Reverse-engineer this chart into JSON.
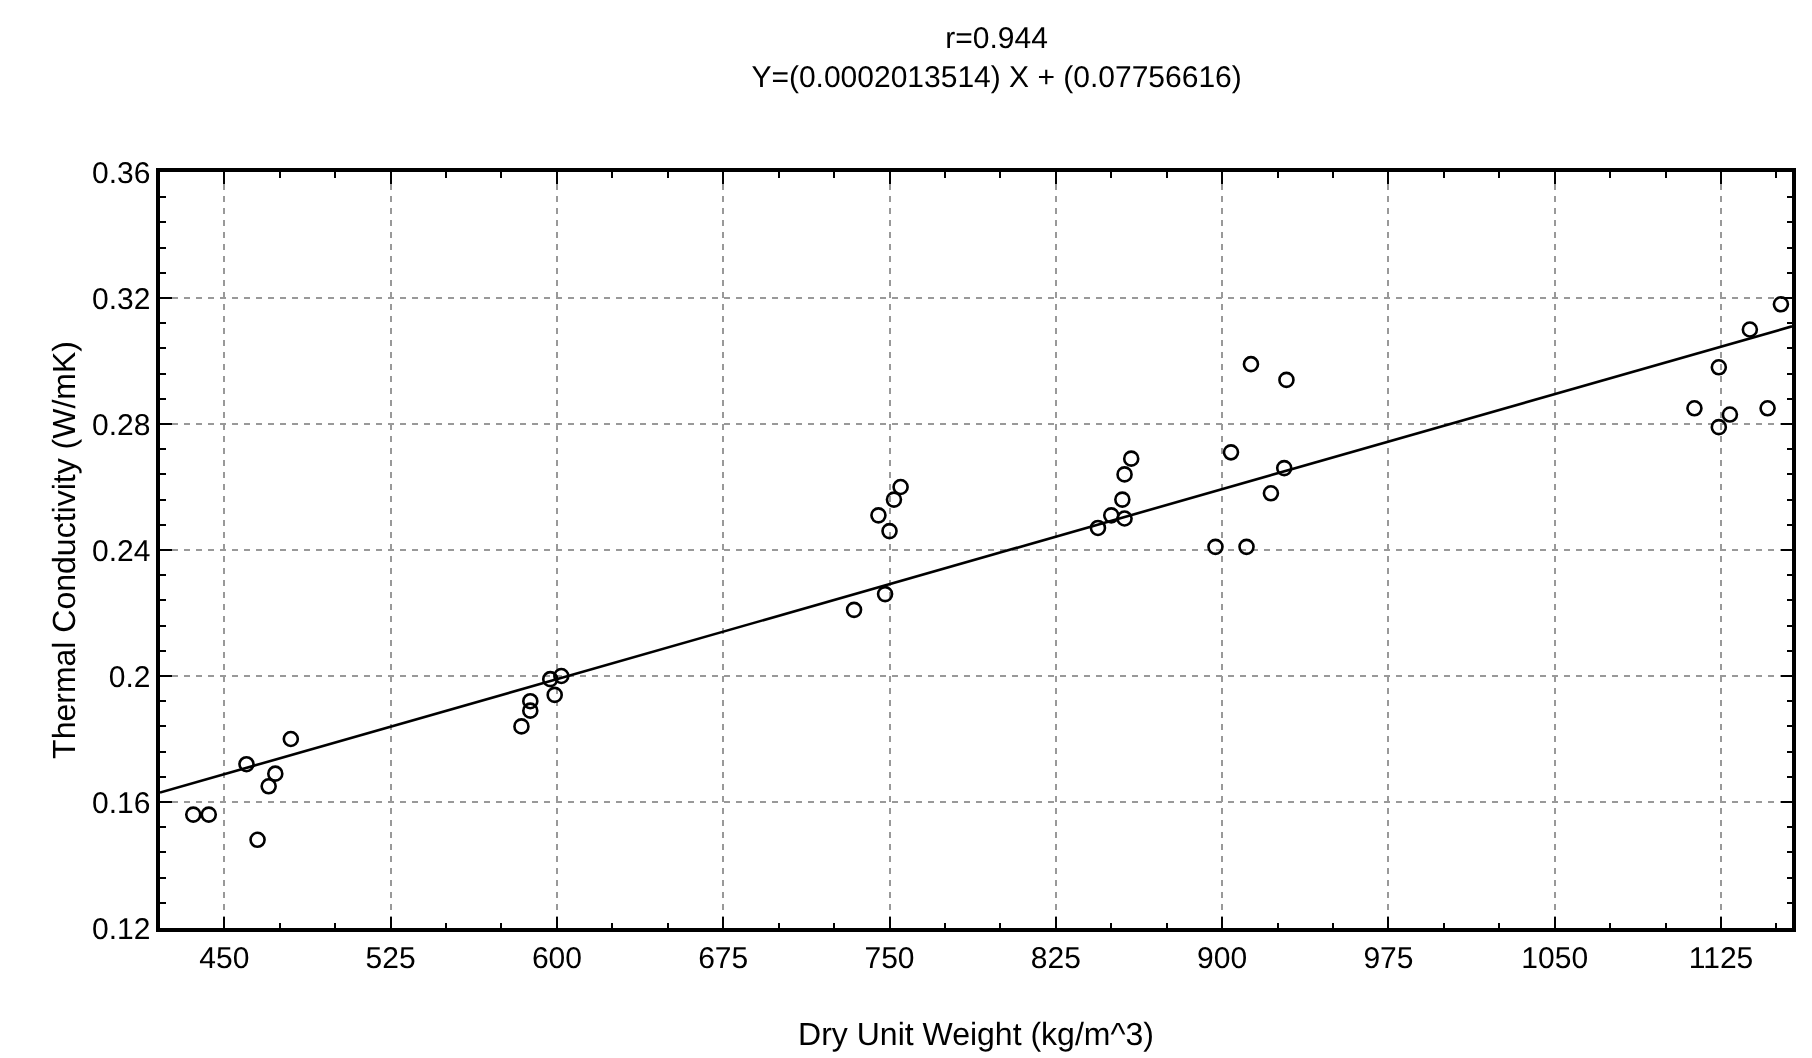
{
  "chart_data": {
    "type": "scatter",
    "title": "r=0.944",
    "subtitle": "Y=(0.0002013514) X + (0.07756616)",
    "xlabel": "Dry Unit Weight (kg/m^3)",
    "ylabel": "Thermal Conductivity (W/mK)",
    "xlim": [
      421,
      1157
    ],
    "ylim": [
      0.12,
      0.36
    ],
    "xticks": [
      450,
      {
        "value": 475,
        "label": null
      },
      {
        "value": 500,
        "label": null
      },
      525,
      {
        "value": 550,
        "label": null
      },
      {
        "value": 575,
        "label": null
      },
      600,
      {
        "value": 625,
        "label": null
      },
      {
        "value": 650,
        "label": null
      },
      675,
      {
        "value": 700,
        "label": null
      },
      {
        "value": 725,
        "label": null
      },
      750,
      {
        "value": 775,
        "label": null
      },
      {
        "value": 800,
        "label": null
      },
      825,
      {
        "value": 850,
        "label": null
      },
      {
        "value": 875,
        "label": null
      },
      900,
      {
        "value": 925,
        "label": null
      },
      {
        "value": 950,
        "label": null
      },
      975,
      {
        "value": 1000,
        "label": null
      },
      {
        "value": 1025,
        "label": null
      },
      1050,
      {
        "value": 1075,
        "label": null
      },
      {
        "value": 1100,
        "label": null
      },
      1125,
      {
        "value": 1150,
        "label": null
      }
    ],
    "yticks": [
      0.12,
      {
        "value": 0.128,
        "label": null
      },
      {
        "value": 0.136,
        "label": null
      },
      {
        "value": 0.144,
        "label": null
      },
      {
        "value": 0.152,
        "label": null
      },
      0.16,
      {
        "value": 0.168,
        "label": null
      },
      {
        "value": 0.176,
        "label": null
      },
      {
        "value": 0.184,
        "label": null
      },
      {
        "value": 0.192,
        "label": null
      },
      0.2,
      {
        "value": 0.208,
        "label": null
      },
      {
        "value": 0.216,
        "label": null
      },
      {
        "value": 0.224,
        "label": null
      },
      {
        "value": 0.232,
        "label": null
      },
      0.24,
      {
        "value": 0.248,
        "label": null
      },
      {
        "value": 0.256,
        "label": null
      },
      {
        "value": 0.264,
        "label": null
      },
      {
        "value": 0.272,
        "label": null
      },
      0.28,
      {
        "value": 0.288,
        "label": null
      },
      {
        "value": 0.296,
        "label": null
      },
      {
        "value": 0.304,
        "label": null
      },
      {
        "value": 0.312,
        "label": null
      },
      0.32,
      {
        "value": 0.328,
        "label": null
      },
      {
        "value": 0.336,
        "label": null
      },
      {
        "value": 0.344,
        "label": null
      },
      {
        "value": 0.352,
        "label": null
      },
      0.36
    ],
    "grid": true,
    "marker": "circle",
    "series": [
      {
        "type": "scatter",
        "color": "#000000",
        "x": [
          436,
          443,
          465,
          460,
          470,
          473,
          480,
          584,
          588,
          588,
          597,
          602,
          599,
          734,
          745,
          748,
          750,
          752,
          755,
          844,
          850,
          855,
          856,
          856,
          859,
          897,
          911,
          904,
          928,
          922,
          913,
          929,
          1138,
          1124,
          1113,
          1129,
          1124,
          1146,
          1152
        ],
        "values": [
          0.156,
          0.156,
          0.148,
          0.172,
          0.165,
          0.169,
          0.18,
          0.184,
          0.189,
          0.192,
          0.199,
          0.2,
          0.194,
          0.221,
          0.251,
          0.226,
          0.246,
          0.256,
          0.26,
          0.247,
          0.251,
          0.256,
          0.25,
          0.264,
          0.269,
          0.241,
          0.241,
          0.271,
          0.266,
          0.258,
          0.299,
          0.294,
          0.31,
          0.298,
          0.285,
          0.283,
          0.279,
          0.285,
          0.318
        ]
      },
      {
        "type": "line",
        "color": "#000000",
        "x": [
          421,
          1157
        ],
        "values": [
          0.163,
          0.311
        ],
        "marker": "none",
        "line_style": "solid"
      }
    ]
  }
}
